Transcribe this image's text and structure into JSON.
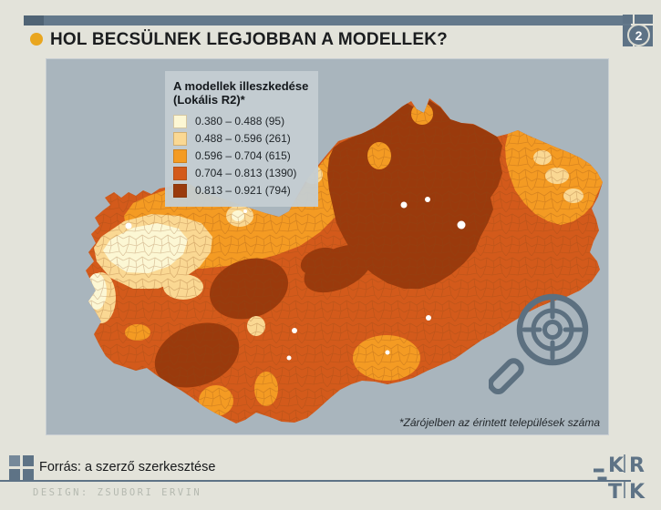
{
  "colors": {
    "page_bg": "#E3E3DA",
    "top_bar": "#64798B",
    "top_bar_dark": "#506475",
    "badge_bg": "#5E7386",
    "bullet": "#E9A61F",
    "panel_bg": "#A9B5BD",
    "legend_bg": "#C4CDD2",
    "no_data": "#FFFFFF",
    "mesh_stroke": "#8A4715",
    "icon_slate": "#5C7080"
  },
  "header": {
    "title": "HOL BECSÜLNEK LEGJOBBAN A MODELLEK?",
    "page_number": "2"
  },
  "legend": {
    "title_line1": "A modellek illeszkedése",
    "title_line2": "(Lokális R2)*",
    "items": [
      {
        "range": "0.380 – 0.488",
        "count": "(95)",
        "color": "#FCF7D4"
      },
      {
        "range": "0.488 – 0.596",
        "count": "(261)",
        "color": "#FAD893"
      },
      {
        "range": "0.596 – 0.704",
        "count": "(615)",
        "color": "#F49B23"
      },
      {
        "range": "0.704 – 0.813",
        "count": "(1390)",
        "color": "#D35A1B"
      },
      {
        "range": "0.813 – 0.921",
        "count": "(794)",
        "color": "#9A3A0C"
      }
    ]
  },
  "map": {
    "footnote": "*Zárójelben az érintett települések száma"
  },
  "chart_data": {
    "type": "choropleth-map",
    "region": "Hungary, settlement level",
    "variable": "Lokális R2 (model fit)",
    "classes": [
      {
        "min": 0.38,
        "max": 0.488,
        "settlements": 95,
        "color": "#FCF7D4"
      },
      {
        "min": 0.488,
        "max": 0.596,
        "settlements": 261,
        "color": "#FAD893"
      },
      {
        "min": 0.596,
        "max": 0.704,
        "settlements": 615,
        "color": "#F49B23"
      },
      {
        "min": 0.704,
        "max": 0.813,
        "settlements": 1390,
        "color": "#D35A1B"
      },
      {
        "min": 0.813,
        "max": 0.921,
        "settlements": 794,
        "color": "#9A3A0C"
      }
    ],
    "pattern_notes": "Highest fit (0.813–0.921) covers the Northeast and two inland patches (around Lake Velence and inner Transdanubia); lowest fit (0.380–0.596) clusters in the Northwest around Győr; the default level elsewhere is 0.704–0.813."
  },
  "footer": {
    "source": "Forrás: a szerző szerkesztése",
    "credit": "DESIGN: ZSUBORI ERVIN",
    "logo": {
      "r1l": "K",
      "r1r": "R",
      "r2l": "T",
      "r2r": "K"
    }
  }
}
